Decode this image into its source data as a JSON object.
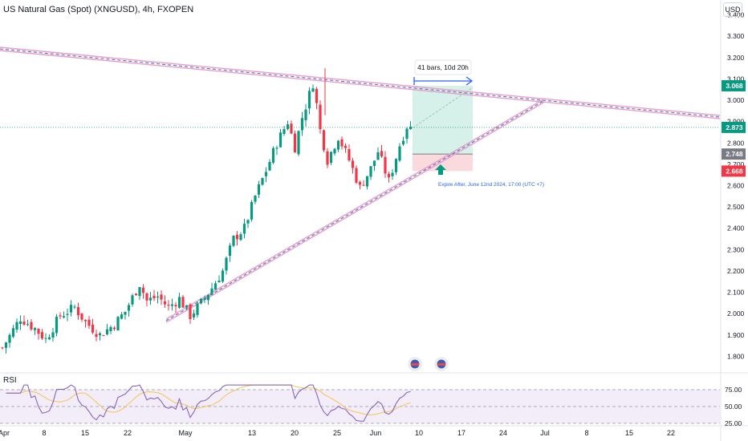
{
  "header": {
    "symbol_title": "US Natural Gas (Spot) (XNGUSD), 4h, FXOPEN",
    "currency": "USD"
  },
  "rsi_panel": {
    "title": "RSI",
    "levels": [
      "75.00",
      "50.00",
      "25.00"
    ]
  },
  "annotations": {
    "bars_label": "41 bars, 10d 20h",
    "expire_label": "Expire After, June 12nd 2024, 17:00 (UTC +7)"
  },
  "price_badges": [
    {
      "value": "3.068",
      "color": "#089981"
    },
    {
      "value": "2.873",
      "color": "#089981"
    },
    {
      "value": "2.748",
      "color": "#787b86"
    },
    {
      "value": "2.668",
      "color": "#f23645"
    }
  ],
  "colors": {
    "up": "#089981",
    "down": "#f23645",
    "trendline": "#9c88c9",
    "rsi_line": "#7e57c2",
    "rsi_ma": "#f5c451",
    "profit_zone": "#cfeee6",
    "loss_zone": "#fbd6d9",
    "arrow": "#2962ff"
  },
  "chart_data": {
    "type": "candlestick",
    "title": "US Natural Gas (Spot) (XNGUSD), 4h, FXOPEN",
    "y_ticks": [
      "3.400",
      "3.300",
      "3.200",
      "3.100",
      "3.000",
      "2.900",
      "2.800",
      "2.700",
      "2.600",
      "2.500",
      "2.400",
      "2.300",
      "2.200",
      "2.100",
      "2.000",
      "1.900",
      "1.800"
    ],
    "ylim": [
      1.73,
      3.47
    ],
    "x_ticks": [
      "Apr",
      "8",
      "15",
      "22",
      "May",
      "13",
      "20",
      "25",
      "Jun",
      "10",
      "17",
      "24",
      "Jul",
      "8",
      "15",
      "22"
    ],
    "close_path": [
      [
        0,
        1.84
      ],
      [
        5,
        1.98
      ],
      [
        9,
        1.93
      ],
      [
        12,
        1.88
      ],
      [
        16,
        1.99
      ],
      [
        20,
        2.03
      ],
      [
        23,
        1.96
      ],
      [
        27,
        1.9
      ],
      [
        31,
        1.95
      ],
      [
        34,
        2.01
      ],
      [
        38,
        2.14
      ],
      [
        40,
        2.06
      ],
      [
        43,
        2.08
      ],
      [
        46,
        2.03
      ],
      [
        49,
        2.07
      ],
      [
        52,
        1.99
      ],
      [
        55,
        2.05
      ],
      [
        58,
        2.12
      ],
      [
        61,
        2.2
      ],
      [
        64,
        2.35
      ],
      [
        67,
        2.4
      ],
      [
        70,
        2.55
      ],
      [
        73,
        2.67
      ],
      [
        76,
        2.8
      ],
      [
        79,
        2.9
      ],
      [
        81,
        2.78
      ],
      [
        83,
        2.92
      ],
      [
        86,
        3.08
      ],
      [
        87,
        2.98
      ],
      [
        88,
        2.86
      ],
      [
        90,
        2.72
      ],
      [
        93,
        2.83
      ],
      [
        96,
        2.72
      ],
      [
        99,
        2.59
      ],
      [
        102,
        2.68
      ],
      [
        104,
        2.76
      ],
      [
        107,
        2.62
      ],
      [
        110,
        2.79
      ],
      [
        112,
        2.88
      ],
      [
        113,
        2.87
      ]
    ],
    "trendlines": {
      "resistance": [
        [
          3.31,
          0
        ],
        [
          2.97,
          0
        ]
      ],
      "support": "rising line from near 1.96 in late April to near 3.06 in late June"
    },
    "position": {
      "type": "long",
      "target": 3.068,
      "entry": 2.748,
      "stop": 2.668,
      "bars": 41,
      "duration": "10d 20h"
    },
    "last_price": 2.873,
    "rsi": {
      "levels": [
        75,
        50,
        25
      ],
      "last": 65
    }
  }
}
